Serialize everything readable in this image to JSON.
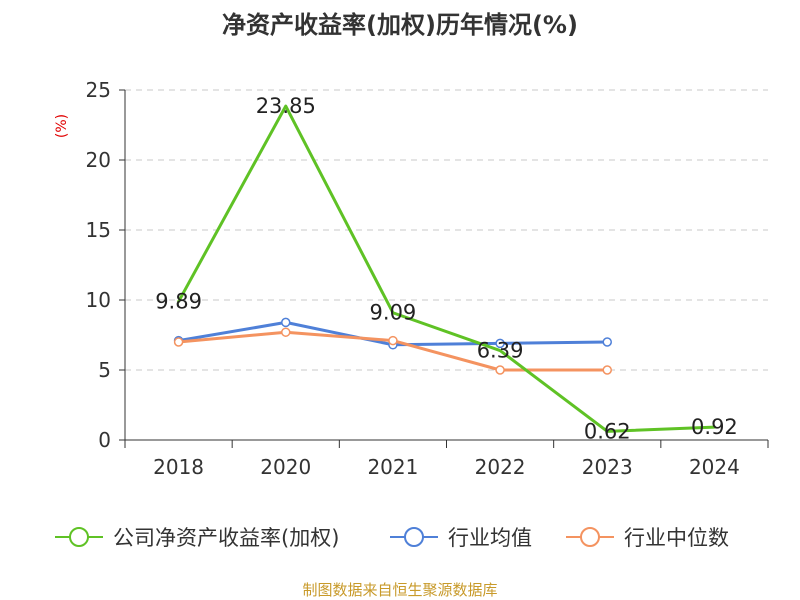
{
  "chart_data": {
    "type": "line",
    "title": "净资产收益率(加权)历年情况(%)",
    "ylabel": "(%)",
    "xlabel": "",
    "categories": [
      "2018",
      "2020",
      "2021",
      "2022",
      "2023",
      "2024"
    ],
    "ylim": [
      0,
      25
    ],
    "yticks": [
      "0",
      "5",
      "10",
      "15",
      "20",
      "25"
    ],
    "grid": true,
    "legend_position": "bottom",
    "series": [
      {
        "name": "公司净资产收益率(加权)",
        "color": "#5fc225",
        "values": [
          9.89,
          23.85,
          9.09,
          6.39,
          0.62,
          0.92
        ],
        "labels": [
          "9.89",
          "23.85",
          "9.09",
          "6.39",
          "0.62",
          "0.92"
        ],
        "show_markers": false
      },
      {
        "name": "行业均值",
        "color": "#4f80d8",
        "values": [
          7.1,
          8.4,
          6.8,
          6.9,
          7.0,
          null
        ],
        "show_markers": true
      },
      {
        "name": "行业中位数",
        "color": "#f49360",
        "values": [
          7.0,
          7.7,
          7.1,
          5.0,
          5.0,
          null
        ],
        "show_markers": true
      }
    ]
  },
  "source_text": "制图数据来自恒生聚源数据库",
  "colors": {
    "title": "#333333",
    "ylabel": "#e00000",
    "axis": "#333333",
    "grid": "#c8c8c8",
    "tick_text": "#333333",
    "source": "#c89a2a"
  }
}
